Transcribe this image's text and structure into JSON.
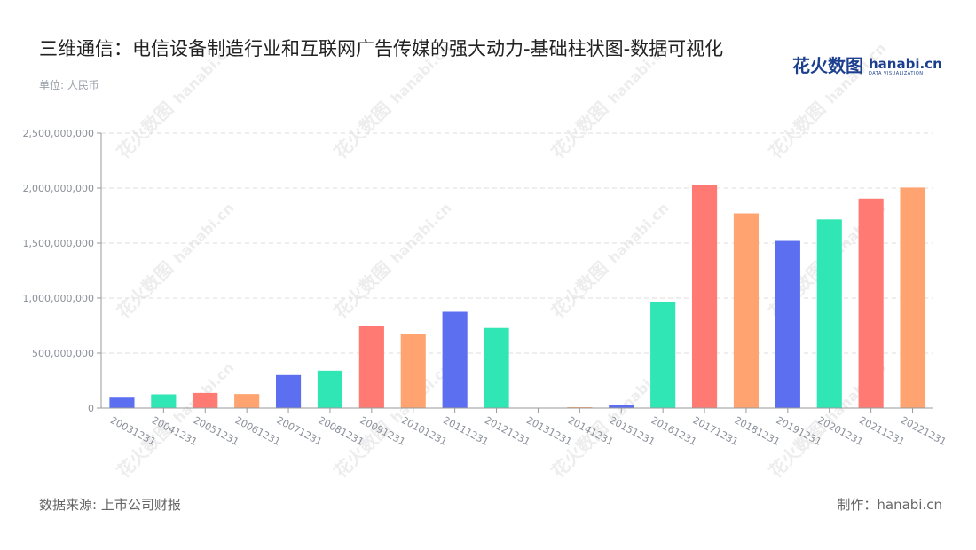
{
  "title": "三维通信：电信设备制造行业和互联网广告传媒的强大动力-基础柱状图-数据可视化",
  "unit_label": "单位: 人民币",
  "logo": {
    "cn": "花火数图",
    "en": "hanabi.cn",
    "sub": "DATA VISUALIZATION"
  },
  "source": "数据来源: 上市公司财报",
  "credit": "制作：hanabi.cn",
  "watermark": {
    "cn": "花火数图",
    "en": "hanabi.cn"
  },
  "colors": {
    "palette": [
      "#5b6ff0",
      "#2fe6b4",
      "#ff7a72",
      "#ffa470"
    ],
    "axis": "#999999",
    "grid": "#dddddd",
    "tick_text": "#8a8f99"
  },
  "chart_data": {
    "type": "bar",
    "categories": [
      "20031231",
      "20041231",
      "20051231",
      "20061231",
      "20071231",
      "20081231",
      "20091231",
      "20101231",
      "20111231",
      "20121231",
      "20131231",
      "20141231",
      "20151231",
      "20161231",
      "20171231",
      "20181231",
      "20191231",
      "20201231",
      "20211231",
      "20221231"
    ],
    "values": [
      95000000,
      125000000,
      138000000,
      128000000,
      300000000,
      340000000,
      748000000,
      670000000,
      875000000,
      728000000,
      2000000,
      8000000,
      28000000,
      968000000,
      2025000000,
      1770000000,
      1520000000,
      1715000000,
      1905000000,
      2005000000
    ],
    "bar_colors": [
      "#5b6ff0",
      "#2fe6b4",
      "#ff7a72",
      "#ffa470",
      "#5b6ff0",
      "#2fe6b4",
      "#ff7a72",
      "#ffa470",
      "#5b6ff0",
      "#2fe6b4",
      "#ff7a72",
      "#ffa470",
      "#5b6ff0",
      "#2fe6b4",
      "#ff7a72",
      "#ffa470",
      "#5b6ff0",
      "#2fe6b4",
      "#ff7a72",
      "#ffa470"
    ],
    "ylim": [
      0,
      2500000000
    ],
    "yticks": [
      0,
      500000000,
      1000000000,
      1500000000,
      2000000000,
      2500000000
    ],
    "ytick_labels": [
      "0",
      "500,000,000",
      "1,000,000,000",
      "1,500,000,000",
      "2,000,000,000",
      "2,500,000,000"
    ],
    "grid": true,
    "legend": "none"
  }
}
